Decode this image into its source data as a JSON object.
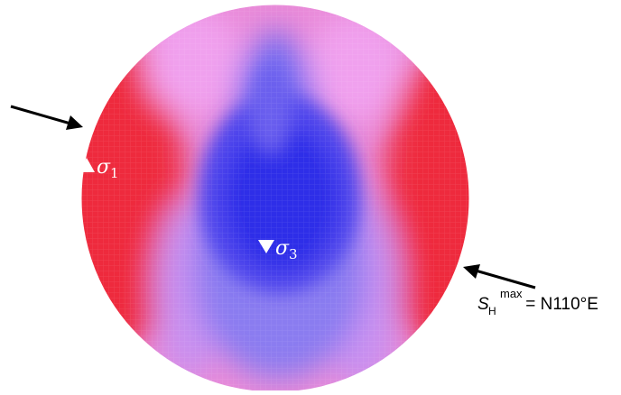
{
  "figure": {
    "type": "stereonet-stress-density-plot",
    "colors": {
      "high": "#ee2233",
      "mid": "#d98be6",
      "low": "#3333ee",
      "outline": "#ffffff",
      "arrow": "#000000",
      "text_marker": "#ffffff"
    },
    "markers": {
      "sigma1": {
        "symbol": "triangle-up",
        "label": "σ",
        "subscript": "1"
      },
      "sigma3": {
        "symbol": "triangle-down",
        "label": "σ",
        "subscript": "3"
      }
    },
    "annotation": {
      "s_h_max": {
        "base": "S",
        "sub": "H",
        "sup": "max",
        "value": " = N110°E"
      }
    }
  }
}
